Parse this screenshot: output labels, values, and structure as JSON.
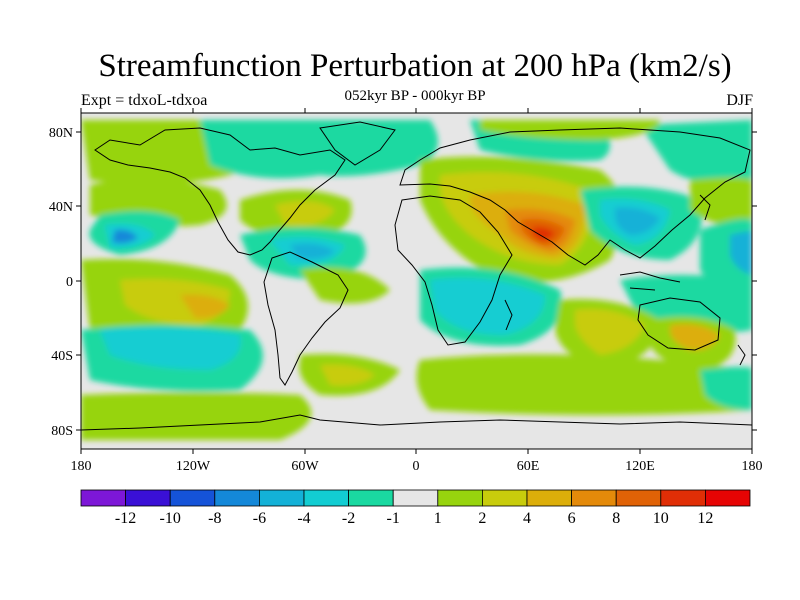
{
  "title": "Streamfunction Perturbation at 200 hPa (km2/s)",
  "subtitle": "052kyr BP - 000kyr BP",
  "left_label": "Expt = tdxoL-tdxoa",
  "right_label": "DJF",
  "y_ticks": [
    "80N",
    "40N",
    "0",
    "40S",
    "80S"
  ],
  "x_ticks": [
    "180",
    "120W",
    "60W",
    "0",
    "60E",
    "120E",
    "180"
  ],
  "colorbar": {
    "labels": [
      "-12",
      "-10",
      "-8",
      "-6",
      "-4",
      "-2",
      "-1",
      "1",
      "2",
      "4",
      "6",
      "8",
      "10",
      "12"
    ],
    "colors": [
      "#7d17d7",
      "#3a10d6",
      "#1553d8",
      "#1488d9",
      "#13b1d7",
      "#12cdd2",
      "#1ad9a1",
      "#e6e6e6",
      "#97d40e",
      "#c8cc0c",
      "#dcae0a",
      "#e48a0a",
      "#e06206",
      "#e02e06",
      "#e60404"
    ]
  },
  "palette": {
    "land_outline": "#000000",
    "neutral": "#e6e6e6"
  }
}
